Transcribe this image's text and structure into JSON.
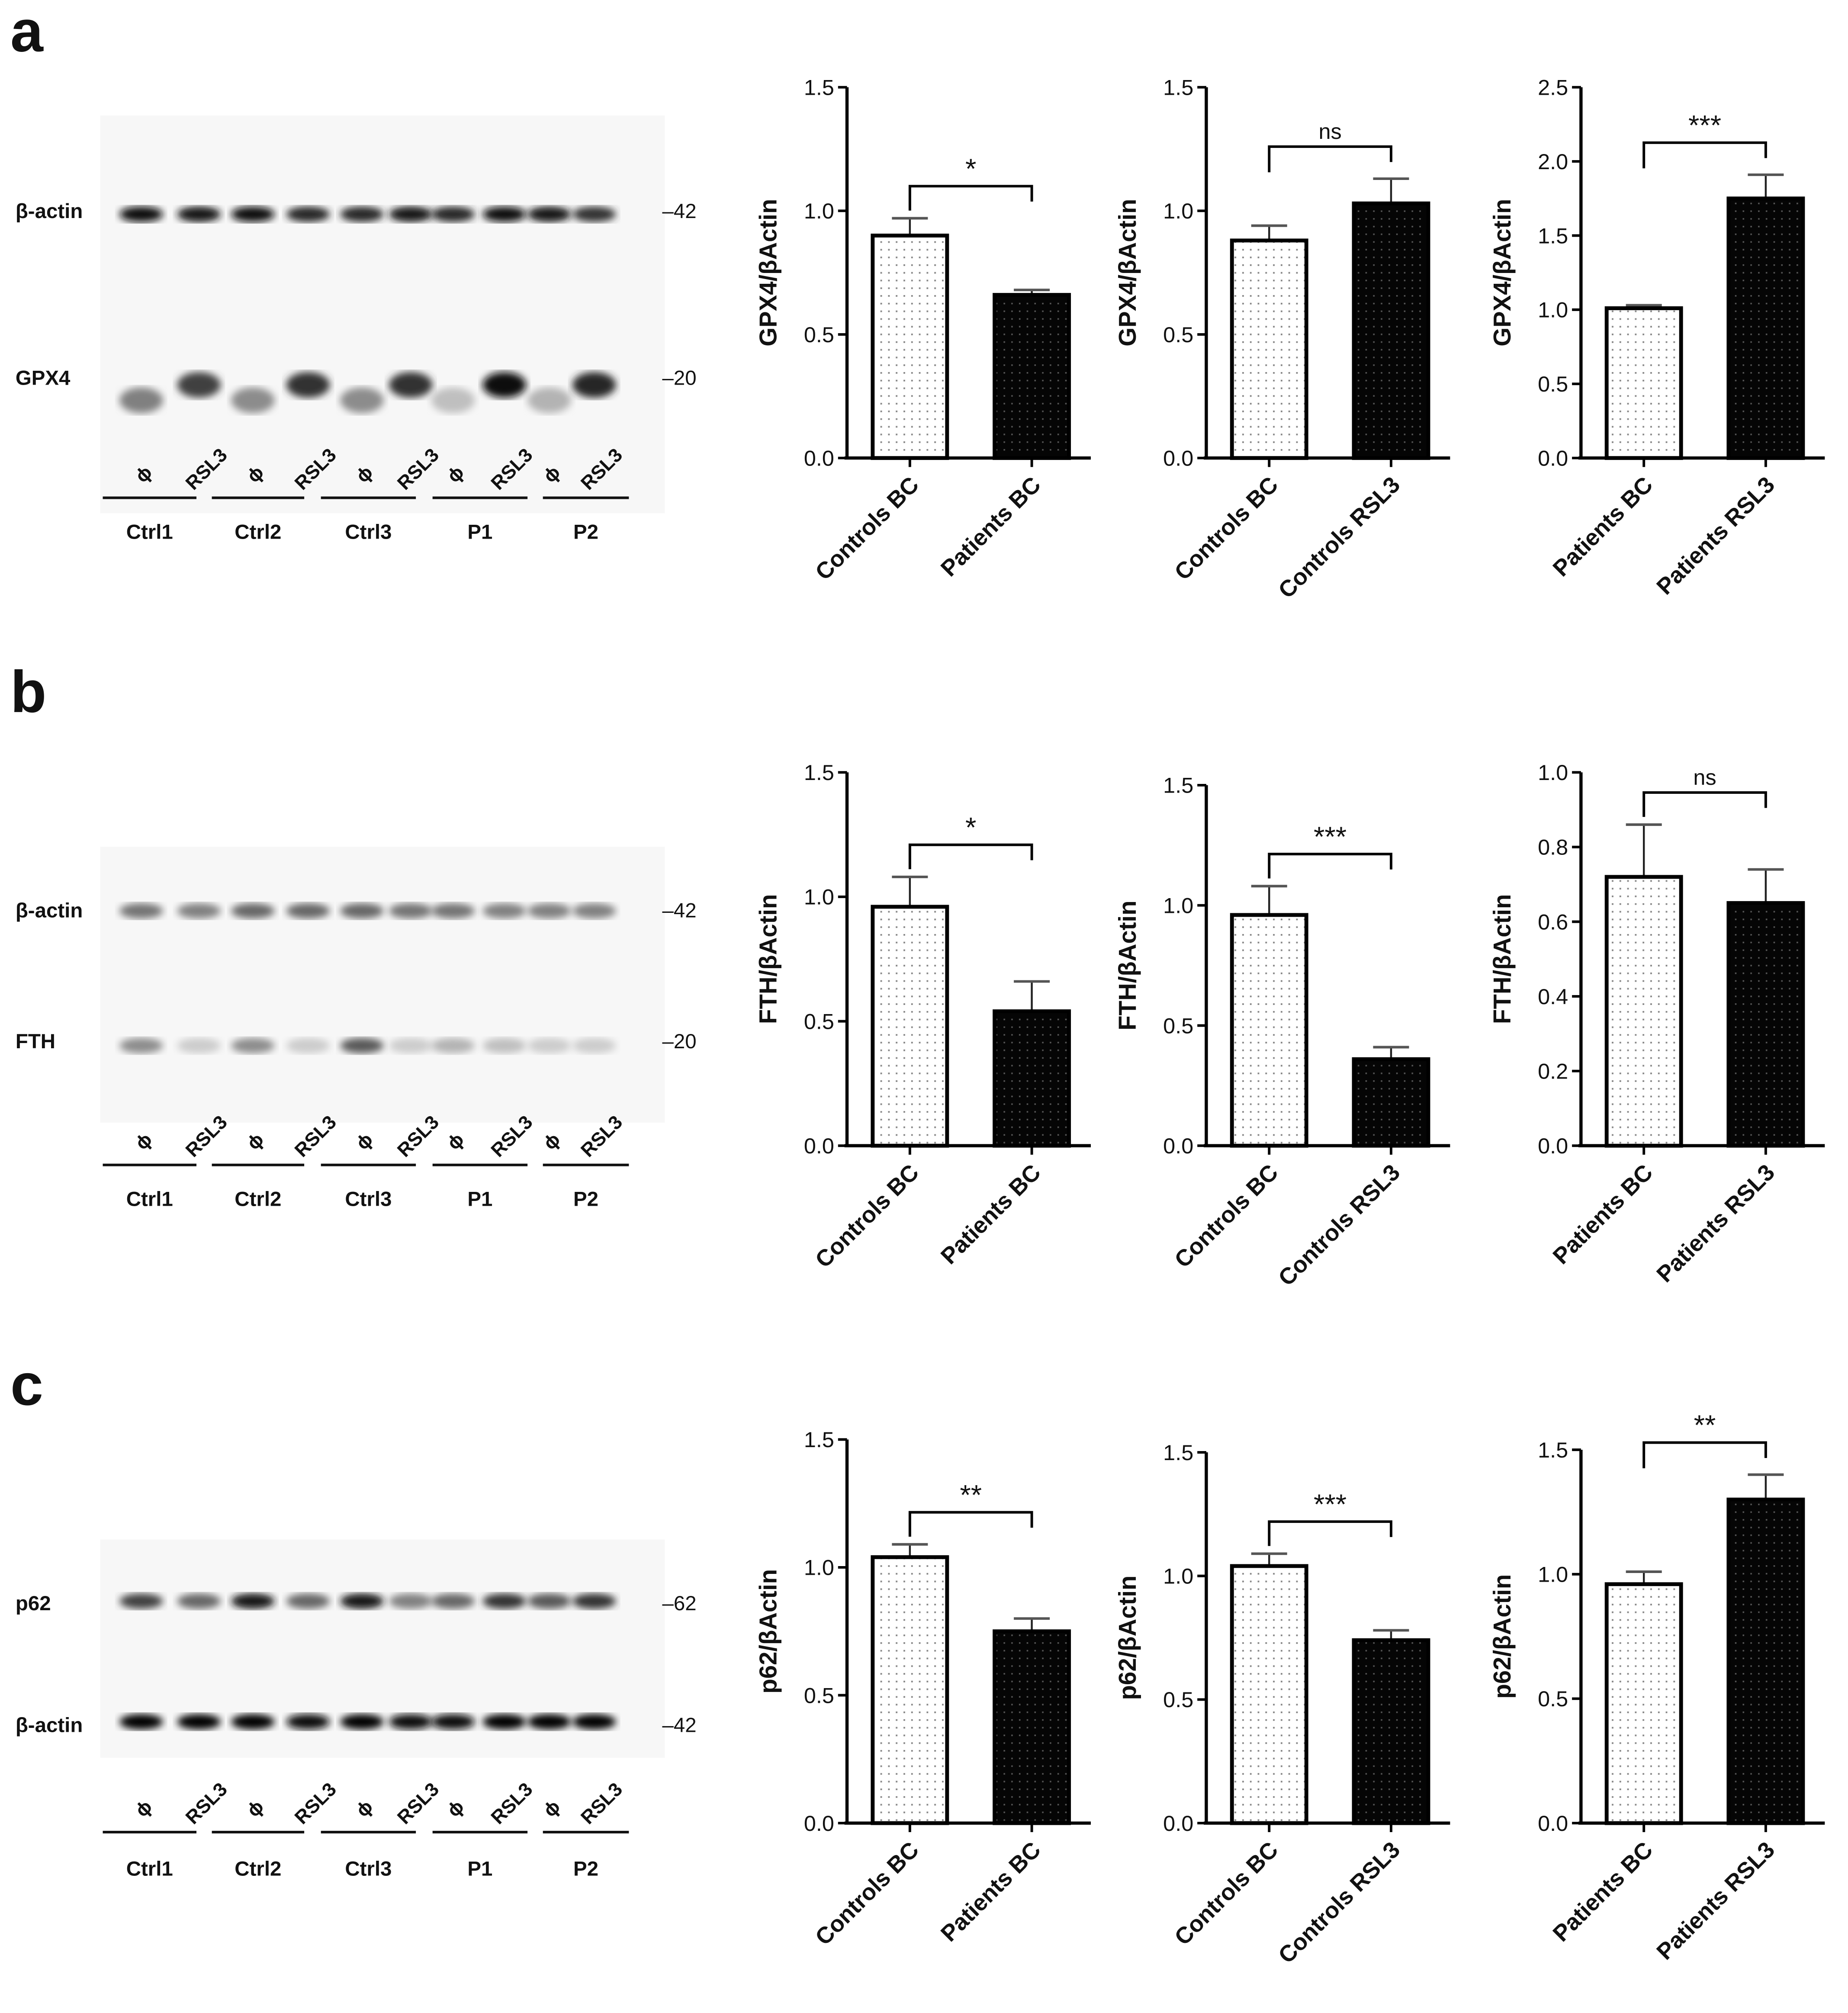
{
  "panels": [
    {
      "letter": "a",
      "blot": {
        "rows": [
          {
            "label": "β-actin",
            "mw": "–42",
            "intensities": [
              0.95,
              0.9,
              0.95,
              0.85,
              0.85,
              0.9,
              0.85,
              0.95,
              0.9,
              0.8
            ],
            "shift": [
              0,
              0,
              0,
              0,
              0,
              0,
              0,
              0,
              0,
              0
            ]
          },
          {
            "label": "GPX4",
            "mw": "–20",
            "intensities": [
              0.5,
              0.75,
              0.45,
              0.8,
              0.45,
              0.8,
              0.25,
              0.95,
              0.3,
              0.85
            ],
            "shift": [
              1,
              0,
              1,
              0,
              1,
              0,
              1,
              0,
              1,
              0
            ]
          }
        ],
        "lane_labels": [
          "ϕ",
          "RSL3"
        ],
        "groups": [
          "Ctrl1",
          "Ctrl2",
          "Ctrl3",
          "P1",
          "P2"
        ]
      }
    },
    {
      "letter": "b",
      "blot": {
        "rows": [
          {
            "label": "β-actin",
            "mw": "–42",
            "intensities": [
              0.55,
              0.5,
              0.6,
              0.6,
              0.6,
              0.55,
              0.55,
              0.5,
              0.5,
              0.5
            ],
            "shift": [
              0,
              0,
              0,
              0,
              0,
              0,
              0,
              0,
              0,
              0
            ]
          },
          {
            "label": "FTH",
            "mw": "–20",
            "intensities": [
              0.45,
              0.2,
              0.45,
              0.2,
              0.65,
              0.2,
              0.3,
              0.25,
              0.2,
              0.2
            ],
            "shift": [
              0,
              0,
              0,
              0,
              0,
              0,
              0,
              0,
              0,
              0
            ]
          }
        ],
        "lane_labels": [
          "ϕ",
          "RSL3"
        ],
        "groups": [
          "Ctrl1",
          "Ctrl2",
          "Ctrl3",
          "P1",
          "P2"
        ]
      }
    },
    {
      "letter": "c",
      "blot": {
        "rows": [
          {
            "label": "p62",
            "mw": "–62",
            "intensities": [
              0.75,
              0.6,
              0.9,
              0.6,
              0.9,
              0.5,
              0.6,
              0.8,
              0.65,
              0.8
            ],
            "shift": [
              0,
              0,
              0,
              0,
              0,
              0,
              0,
              0,
              0,
              0
            ]
          },
          {
            "label": "β-actin",
            "mw": "–42",
            "intensities": [
              1,
              1,
              1,
              0.95,
              1,
              0.95,
              0.95,
              1,
              1,
              1
            ],
            "shift": [
              0,
              0,
              0,
              0,
              0,
              0,
              0,
              0,
              0,
              0
            ]
          }
        ],
        "lane_labels": [
          "ϕ",
          "RSL3"
        ],
        "groups": [
          "Ctrl1",
          "Ctrl2",
          "Ctrl3",
          "P1",
          "P2"
        ]
      }
    }
  ],
  "chart_data": [
    {
      "type": "bar",
      "panel": "a",
      "ylabel": "GPX4/βActin",
      "categories": [
        "Controls BC",
        "Patients BC"
      ],
      "values": [
        0.9,
        0.66
      ],
      "errors": [
        0.07,
        0.02
      ],
      "ylim": [
        0,
        1.5
      ],
      "yticks": [
        "0.0",
        "0.5",
        "1.0",
        "1.5"
      ],
      "significance": "*",
      "bar_styles": [
        "light",
        "dark"
      ]
    },
    {
      "type": "bar",
      "panel": "a",
      "ylabel": "GPX4/βActin",
      "categories": [
        "Controls BC",
        "Controls RSL3"
      ],
      "values": [
        0.88,
        1.03
      ],
      "errors": [
        0.06,
        0.1
      ],
      "ylim": [
        0,
        1.5
      ],
      "yticks": [
        "0.0",
        "0.5",
        "1.0",
        "1.5"
      ],
      "significance": "ns",
      "bar_styles": [
        "light",
        "dark"
      ]
    },
    {
      "type": "bar",
      "panel": "a",
      "ylabel": "GPX4/βActin",
      "categories": [
        "Patients BC",
        "Patients RSL3"
      ],
      "values": [
        1.01,
        1.75
      ],
      "errors": [
        0.02,
        0.16
      ],
      "ylim": [
        0,
        2.5
      ],
      "yticks": [
        "0.0",
        "0.5",
        "1.0",
        "1.5",
        "2.0",
        "2.5"
      ],
      "significance": "***",
      "bar_styles": [
        "light",
        "dark"
      ]
    },
    {
      "type": "bar",
      "panel": "b",
      "ylabel": "FTH/βActin",
      "categories": [
        "Controls BC",
        "Patients BC"
      ],
      "values": [
        0.96,
        0.54
      ],
      "errors": [
        0.12,
        0.12
      ],
      "ylim": [
        0,
        1.5
      ],
      "yticks": [
        "0.0",
        "0.5",
        "1.0",
        "1.5"
      ],
      "significance": "*",
      "bar_styles": [
        "light",
        "dark"
      ]
    },
    {
      "type": "bar",
      "panel": "b",
      "ylabel": "FTH/βActin",
      "categories": [
        "Controls BC",
        "Controls RSL3"
      ],
      "values": [
        0.96,
        0.36
      ],
      "errors": [
        0.12,
        0.05
      ],
      "ylim": [
        0,
        1.5
      ],
      "yticks": [
        "0.0",
        "0.5",
        "1.0",
        "1.5"
      ],
      "significance": "***",
      "bar_styles": [
        "light",
        "dark"
      ]
    },
    {
      "type": "bar",
      "panel": "b",
      "ylabel": "FTH/βActin",
      "categories": [
        "Patients BC",
        "Patients RSL3"
      ],
      "values": [
        0.72,
        0.65
      ],
      "errors": [
        0.14,
        0.09
      ],
      "ylim": [
        0,
        1.0
      ],
      "yticks": [
        "0.0",
        "0.2",
        "0.4",
        "0.6",
        "0.8",
        "1.0"
      ],
      "significance": "ns",
      "bar_styles": [
        "light",
        "dark"
      ]
    },
    {
      "type": "bar",
      "panel": "c",
      "ylabel": "p62/βActin",
      "categories": [
        "Controls BC",
        "Patients BC"
      ],
      "values": [
        1.04,
        0.75
      ],
      "errors": [
        0.05,
        0.05
      ],
      "ylim": [
        0,
        1.5
      ],
      "yticks": [
        "0.0",
        "0.5",
        "1.0",
        "1.5"
      ],
      "significance": "**",
      "bar_styles": [
        "light",
        "dark"
      ]
    },
    {
      "type": "bar",
      "panel": "c",
      "ylabel": "p62/βActin",
      "categories": [
        "Controls BC",
        "Controls RSL3"
      ],
      "values": [
        1.04,
        0.74
      ],
      "errors": [
        0.05,
        0.04
      ],
      "ylim": [
        0,
        1.5
      ],
      "yticks": [
        "0.0",
        "0.5",
        "1.0",
        "1.5"
      ],
      "significance": "***",
      "bar_styles": [
        "light",
        "dark"
      ]
    },
    {
      "type": "bar",
      "panel": "c",
      "ylabel": "p62/βActin",
      "categories": [
        "Patients BC",
        "Patients RSL3"
      ],
      "values": [
        0.96,
        1.3
      ],
      "errors": [
        0.05,
        0.1
      ],
      "ylim": [
        0,
        1.5
      ],
      "yticks": [
        "0.0",
        "0.5",
        "1.0",
        "1.5"
      ],
      "significance": "**",
      "bar_styles": [
        "light",
        "dark"
      ]
    }
  ]
}
